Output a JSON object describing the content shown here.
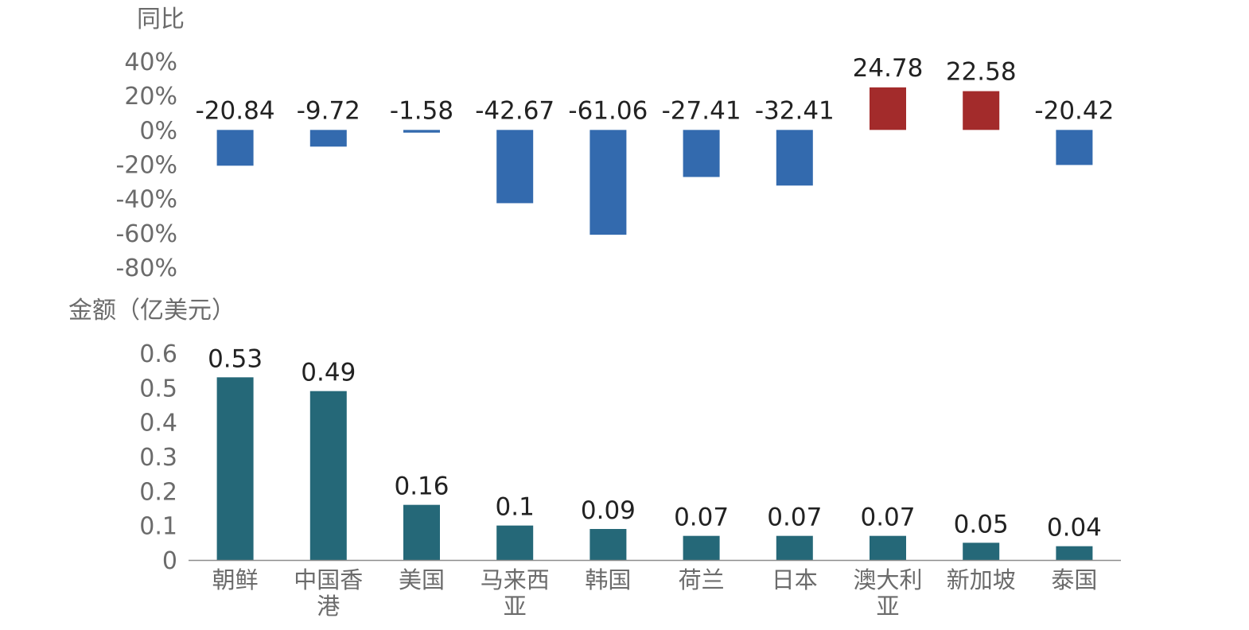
{
  "chart_data": [
    {
      "type": "bar",
      "ylabel": "同比",
      "yticks": [
        "40%",
        "20%",
        "0%",
        "-20%",
        "-40%",
        "-60%",
        "-80%"
      ],
      "ylim": [
        -80,
        40
      ],
      "categories": [
        "朝鲜",
        "中国香港",
        "美国",
        "马来西亚",
        "韩国",
        "荷兰",
        "日本",
        "澳大利亚",
        "新加坡",
        "泰国"
      ],
      "values": [
        -20.84,
        -9.72,
        -1.58,
        -42.67,
        -61.06,
        -27.41,
        -32.41,
        24.78,
        22.58,
        -20.42
      ],
      "value_labels": [
        "-20.84",
        "-9.72",
        "-1.58",
        "-42.67",
        "-61.06",
        "-27.41",
        "-32.41",
        "24.78",
        "22.58",
        "-20.42"
      ],
      "colors": {
        "negative": "#336AAE",
        "positive": "#A32B2B"
      },
      "grid": false
    },
    {
      "type": "bar",
      "ylabel": "金额（亿美元）",
      "yticks": [
        "0.6",
        "0.5",
        "0.4",
        "0.3",
        "0.2",
        "0.1",
        "0"
      ],
      "ylim": [
        0,
        0.6
      ],
      "categories": [
        "朝鲜",
        "中国香港",
        "美国",
        "马来西亚",
        "韩国",
        "荷兰",
        "日本",
        "澳大利亚",
        "新加坡",
        "泰国"
      ],
      "category_lines": [
        [
          "朝鲜"
        ],
        [
          "中国香",
          "港"
        ],
        [
          "美国"
        ],
        [
          "马来西",
          "亚"
        ],
        [
          "韩国"
        ],
        [
          "荷兰"
        ],
        [
          "日本"
        ],
        [
          "澳大利",
          "亚"
        ],
        [
          "新加坡"
        ],
        [
          "泰国"
        ]
      ],
      "values": [
        0.53,
        0.49,
        0.16,
        0.1,
        0.09,
        0.07,
        0.07,
        0.07,
        0.05,
        0.04
      ],
      "value_labels": [
        "0.53",
        "0.49",
        "0.16",
        "0.1",
        "0.09",
        "0.07",
        "0.07",
        "0.07",
        "0.05",
        "0.04"
      ],
      "colors": {
        "bar": "#256878",
        "axis": "#8c8c8c"
      },
      "grid": false
    }
  ]
}
